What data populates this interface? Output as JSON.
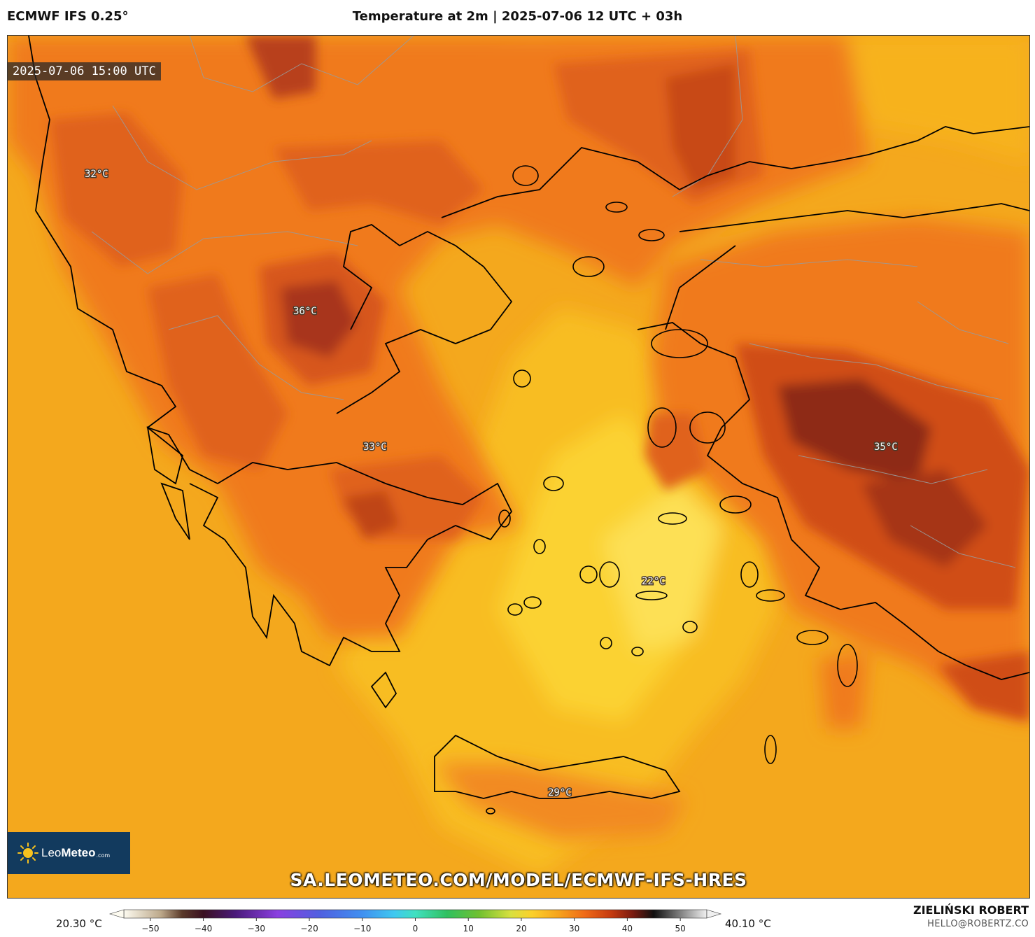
{
  "header": {
    "model": "ECMWF IFS 0.25°",
    "title": "Temperature at 2m | 2025-07-06 12 UTC + 03h"
  },
  "map": {
    "valid_time": "2025-07-06 15:00 UTC",
    "labels": [
      {
        "text": "32°C",
        "region": "albania-montenegro"
      },
      {
        "text": "36°C",
        "region": "western-macedonia"
      },
      {
        "text": "33°C",
        "region": "central-greece"
      },
      {
        "text": "35°C",
        "region": "western-anatolia"
      },
      {
        "text": "22°C",
        "region": "central-aegean"
      },
      {
        "text": "29°C",
        "region": "crete"
      }
    ],
    "colors": {
      "sea": "#f4a81d",
      "warm": "#f08020",
      "hot": "#d25612",
      "hottest": "#8a2a10",
      "cool": "#fbc72d"
    }
  },
  "logo": {
    "brand_light": "Leo",
    "brand_bold": "Meteo",
    "domain": ".com"
  },
  "site_url": "SA.LEOMETEO.COM/MODEL/ECMWF-IFS-HRES",
  "colorbar": {
    "min_label": "20.30 °C",
    "max_label": "40.10 °C",
    "ticks": [
      "−50",
      "−40",
      "−30",
      "−20",
      "−10",
      "0",
      "10",
      "20",
      "30",
      "40",
      "50"
    ],
    "range": [
      -55,
      55
    ],
    "stops": [
      {
        "v": -55,
        "c": "#fdfbf0"
      },
      {
        "v": -48,
        "c": "#bca88a"
      },
      {
        "v": -44,
        "c": "#5a3a2a"
      },
      {
        "v": -40,
        "c": "#3a1020"
      },
      {
        "v": -34,
        "c": "#4a1a7a"
      },
      {
        "v": -26,
        "c": "#8a40e0"
      },
      {
        "v": -18,
        "c": "#5060e0"
      },
      {
        "v": -10,
        "c": "#4090f0"
      },
      {
        "v": -4,
        "c": "#40c8f0"
      },
      {
        "v": 0,
        "c": "#40e0c0"
      },
      {
        "v": 6,
        "c": "#30c060"
      },
      {
        "v": 12,
        "c": "#70c030"
      },
      {
        "v": 18,
        "c": "#d8e040"
      },
      {
        "v": 22,
        "c": "#fbd02a"
      },
      {
        "v": 27,
        "c": "#f6a31c"
      },
      {
        "v": 32,
        "c": "#ef6a18"
      },
      {
        "v": 37,
        "c": "#c43a10"
      },
      {
        "v": 41,
        "c": "#7a1a10"
      },
      {
        "v": 45,
        "c": "#101010"
      },
      {
        "v": 50,
        "c": "#808080"
      },
      {
        "v": 55,
        "c": "#f0f0f0"
      }
    ]
  },
  "credits": {
    "author": "ZIELIŃSKI ROBERT",
    "email": "HELLO@ROBERTZ.CO"
  }
}
